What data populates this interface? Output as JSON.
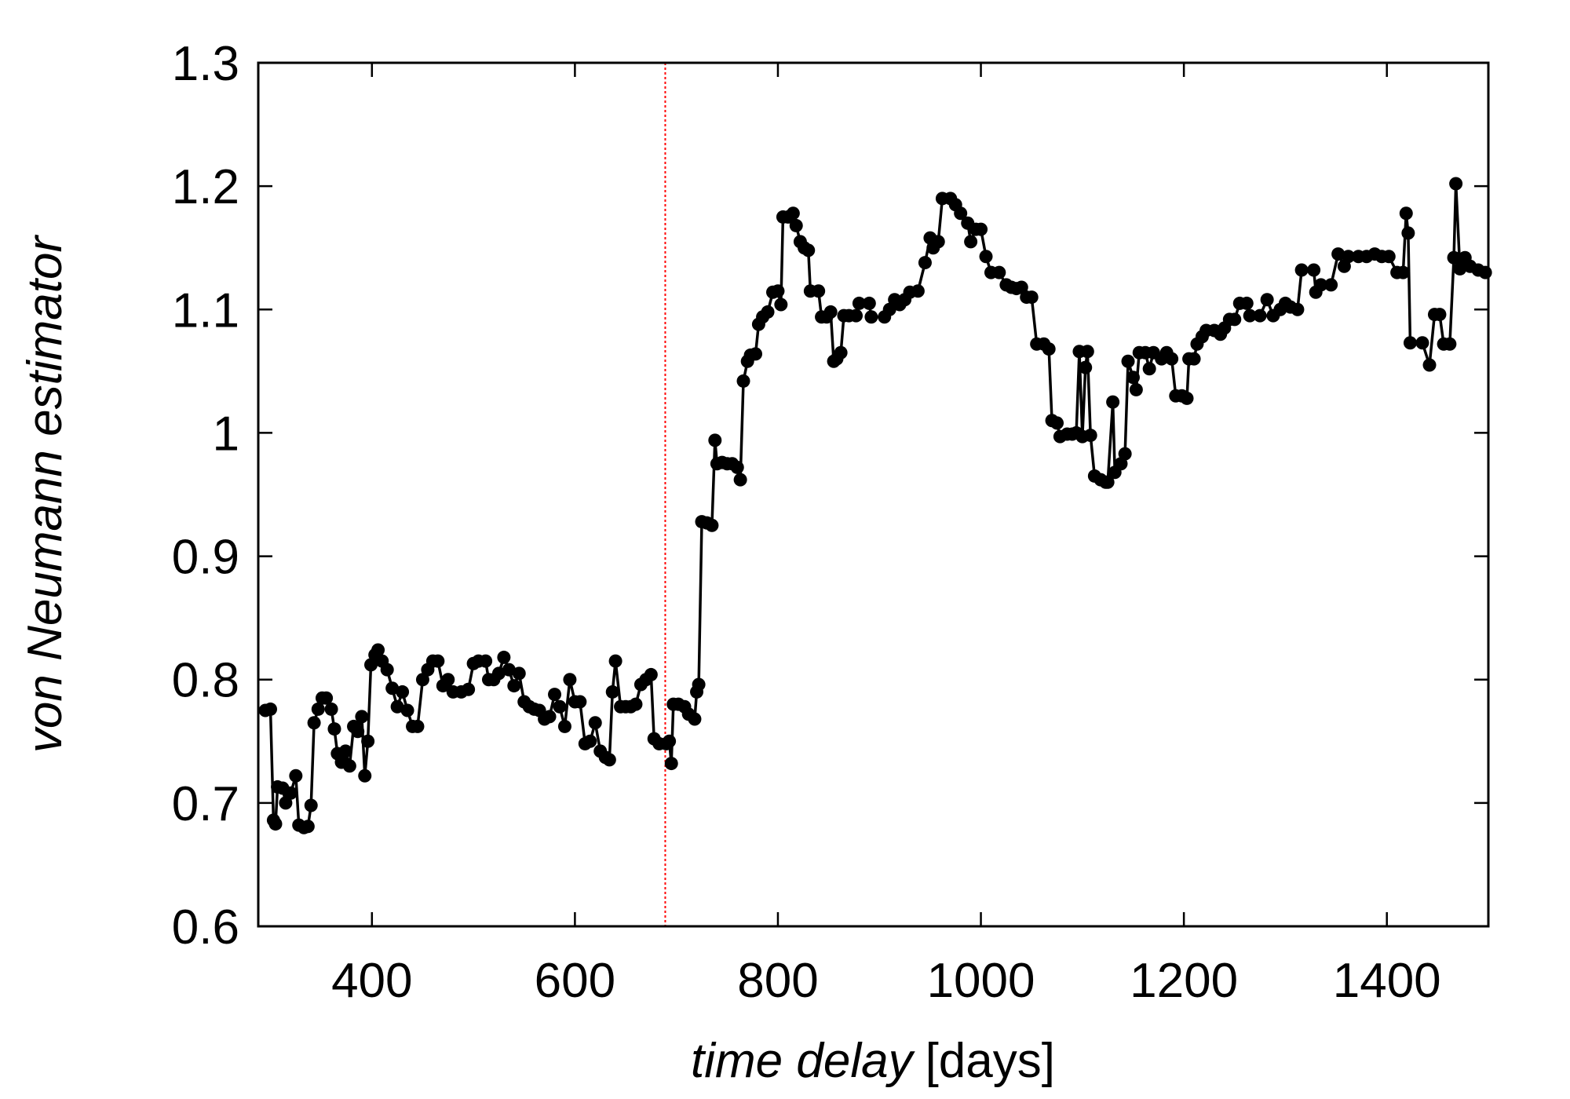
{
  "chart_data": {
    "type": "line",
    "ylabel": "von Neumann estimator",
    "xlabel": "time delay",
    "xlabel_unit": "[days]",
    "xlim": [
      288,
      1500
    ],
    "ylim": [
      0.6,
      1.3
    ],
    "xticks": [
      400,
      600,
      800,
      1000,
      1200,
      1400
    ],
    "yticks": [
      0.6,
      0.7,
      0.8,
      0.9,
      1,
      1.1,
      1.2,
      1.3
    ],
    "vline": 689,
    "vline_color": "#ff0000",
    "series": [
      {
        "color": "#000000",
        "x": [
          295,
          300,
          303,
          305,
          307,
          312,
          315,
          320,
          325,
          328,
          333,
          337,
          340,
          343,
          347,
          351,
          355,
          360,
          363,
          366,
          370,
          374,
          378,
          382,
          386,
          390,
          393,
          396,
          399,
          403,
          406,
          410,
          415,
          420,
          425,
          430,
          435,
          440,
          445,
          450,
          455,
          460,
          465,
          470,
          475,
          480,
          488,
          495,
          500,
          505,
          512,
          515,
          520,
          525,
          530,
          535,
          540,
          545,
          550,
          555,
          560,
          565,
          570,
          575,
          580,
          585,
          590,
          595,
          600,
          605,
          610,
          615,
          620,
          625,
          630,
          634,
          637,
          640,
          645,
          650,
          655,
          660,
          665,
          670,
          675,
          678,
          683,
          690,
          693,
          695,
          697,
          702,
          708,
          712,
          718,
          720,
          722,
          725,
          730,
          735,
          738,
          740,
          745,
          750,
          755,
          760,
          763,
          766,
          770,
          773,
          778,
          781,
          785,
          790,
          795,
          800,
          803,
          805,
          810,
          815,
          818,
          822,
          826,
          830,
          832,
          840,
          843,
          848,
          852,
          855,
          858,
          862,
          865,
          870,
          877,
          880,
          890,
          892,
          905,
          910,
          915,
          920,
          925,
          930,
          938,
          945,
          950,
          953,
          958,
          962,
          970,
          975,
          980,
          987,
          990,
          995,
          1000,
          1005,
          1010,
          1018,
          1025,
          1030,
          1035,
          1040,
          1045,
          1050,
          1055,
          1062,
          1067,
          1070,
          1075,
          1078,
          1085,
          1090,
          1094,
          1097,
          1100,
          1103,
          1105,
          1108,
          1112,
          1118,
          1123,
          1125,
          1130,
          1132,
          1138,
          1142,
          1145,
          1150,
          1153,
          1156,
          1162,
          1166,
          1170,
          1178,
          1183,
          1188,
          1192,
          1198,
          1203,
          1205,
          1210,
          1213,
          1218,
          1222,
          1230,
          1236,
          1240,
          1245,
          1250,
          1255,
          1262,
          1265,
          1275,
          1282,
          1288,
          1295,
          1300,
          1305,
          1312,
          1316,
          1328,
          1330,
          1335,
          1345,
          1352,
          1358,
          1362,
          1372,
          1380,
          1388,
          1395,
          1402,
          1410,
          1416,
          1419,
          1421,
          1423,
          1435,
          1442,
          1447,
          1452,
          1456,
          1462,
          1466,
          1468,
          1472,
          1477,
          1482,
          1490,
          1497
        ],
        "values": [
          0.775,
          0.776,
          0.686,
          0.683,
          0.713,
          0.712,
          0.7,
          0.708,
          0.722,
          0.682,
          0.68,
          0.681,
          0.698,
          0.765,
          0.776,
          0.785,
          0.785,
          0.776,
          0.76,
          0.74,
          0.733,
          0.742,
          0.73,
          0.762,
          0.758,
          0.77,
          0.722,
          0.75,
          0.812,
          0.82,
          0.824,
          0.815,
          0.808,
          0.793,
          0.778,
          0.79,
          0.775,
          0.762,
          0.762,
          0.8,
          0.808,
          0.815,
          0.815,
          0.795,
          0.8,
          0.79,
          0.79,
          0.792,
          0.813,
          0.815,
          0.815,
          0.8,
          0.8,
          0.805,
          0.818,
          0.808,
          0.795,
          0.805,
          0.782,
          0.778,
          0.776,
          0.775,
          0.768,
          0.77,
          0.788,
          0.778,
          0.762,
          0.8,
          0.782,
          0.782,
          0.748,
          0.75,
          0.765,
          0.742,
          0.737,
          0.735,
          0.79,
          0.815,
          0.778,
          0.778,
          0.778,
          0.78,
          0.796,
          0.8,
          0.804,
          0.752,
          0.748,
          0.748,
          0.75,
          0.732,
          0.78,
          0.78,
          0.778,
          0.772,
          0.768,
          0.79,
          0.796,
          0.928,
          0.927,
          0.925,
          0.994,
          0.975,
          0.976,
          0.975,
          0.975,
          0.972,
          0.962,
          1.042,
          1.058,
          1.063,
          1.064,
          1.088,
          1.094,
          1.098,
          1.114,
          1.115,
          1.104,
          1.175,
          1.175,
          1.178,
          1.168,
          1.155,
          1.15,
          1.148,
          1.115,
          1.115,
          1.094,
          1.094,
          1.098,
          1.058,
          1.06,
          1.065,
          1.095,
          1.095,
          1.095,
          1.105,
          1.105,
          1.094,
          1.094,
          1.1,
          1.108,
          1.104,
          1.108,
          1.114,
          1.115,
          1.138,
          1.158,
          1.15,
          1.155,
          1.19,
          1.19,
          1.185,
          1.178,
          1.17,
          1.155,
          1.165,
          1.165,
          1.143,
          1.13,
          1.13,
          1.12,
          1.118,
          1.117,
          1.118,
          1.11,
          1.11,
          1.072,
          1.072,
          1.068,
          1.01,
          1.008,
          0.997,
          0.999,
          0.999,
          1.0,
          1.066,
          0.997,
          1.053,
          1.066,
          0.998,
          0.965,
          0.962,
          0.96,
          0.96,
          1.025,
          0.968,
          0.975,
          0.983,
          1.058,
          1.045,
          1.035,
          1.065,
          1.065,
          1.052,
          1.065,
          1.06,
          1.065,
          1.06,
          1.03,
          1.03,
          1.028,
          1.06,
          1.06,
          1.072,
          1.078,
          1.083,
          1.083,
          1.08,
          1.085,
          1.092,
          1.092,
          1.105,
          1.105,
          1.095,
          1.095,
          1.108,
          1.095,
          1.1,
          1.105,
          1.102,
          1.1,
          1.132,
          1.132,
          1.114,
          1.12,
          1.12,
          1.145,
          1.135,
          1.143,
          1.143,
          1.143,
          1.145,
          1.143,
          1.143,
          1.13,
          1.13,
          1.178,
          1.162,
          1.073,
          1.073,
          1.055,
          1.096,
          1.096,
          1.072,
          1.072,
          1.142,
          1.202,
          1.133,
          1.142,
          1.135,
          1.132,
          1.13
        ]
      }
    ]
  }
}
